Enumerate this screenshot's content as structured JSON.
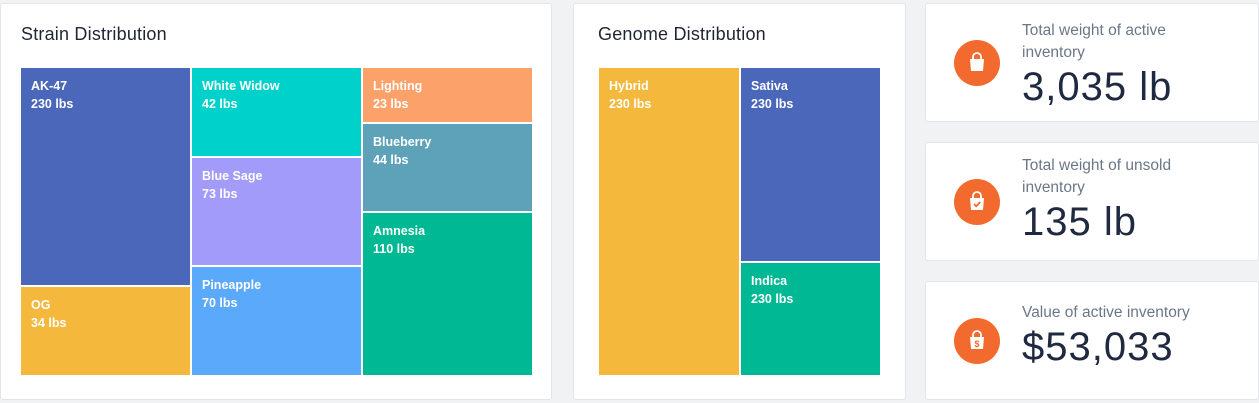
{
  "strain": {
    "title": "Strain Distribution",
    "chart_data": {
      "type": "treemap",
      "title": "Strain Distribution",
      "unit": "lbs",
      "items": [
        {
          "name": "AK-47",
          "value": 230,
          "label": "230 lbs",
          "color": "#4a67b9"
        },
        {
          "name": "OG",
          "value": 34,
          "label": "34 lbs",
          "color": "#f4b83c"
        },
        {
          "name": "White Widow",
          "value": 42,
          "label": "42 lbs",
          "color": "#00d1cb"
        },
        {
          "name": "Blue Sage",
          "value": 73,
          "label": "73 lbs",
          "color": "#a29bfa"
        },
        {
          "name": "Pineapple",
          "value": 70,
          "label": "70 lbs",
          "color": "#5aa9fa"
        },
        {
          "name": "Lighting",
          "value": 23,
          "label": "23 lbs",
          "color": "#fda16a"
        },
        {
          "name": "Blueberry",
          "value": 44,
          "label": "44 lbs",
          "color": "#5ea2b9"
        },
        {
          "name": "Amnesia",
          "value": 110,
          "label": "110 lbs",
          "color": "#00b893"
        }
      ]
    }
  },
  "genome": {
    "title": "Genome Distribution",
    "chart_data": {
      "type": "treemap",
      "title": "Genome Distribution",
      "unit": "lbs",
      "items": [
        {
          "name": "Hybrid",
          "value": 230,
          "label": "230 lbs",
          "color": "#f4b83c"
        },
        {
          "name": "Sativa",
          "value": 230,
          "label": "230 lbs",
          "color": "#4a67b9"
        },
        {
          "name": "Indica",
          "value": 230,
          "label": "230 lbs",
          "color": "#00b893"
        }
      ]
    }
  },
  "kpis": [
    {
      "label": "Total weight of active inventory",
      "value": "3,035 lb",
      "icon": "shopping-bag-icon"
    },
    {
      "label": "Total weight of unsold inventory",
      "value": "135 lb",
      "icon": "bag-check-icon"
    },
    {
      "label": "Value of active inventory",
      "value": "$53,033",
      "icon": "bag-dollar-icon"
    }
  ],
  "colors": {
    "icon_bg": "#f26a2e",
    "card_bg": "#ffffff",
    "page_bg": "#f1f2f4"
  }
}
